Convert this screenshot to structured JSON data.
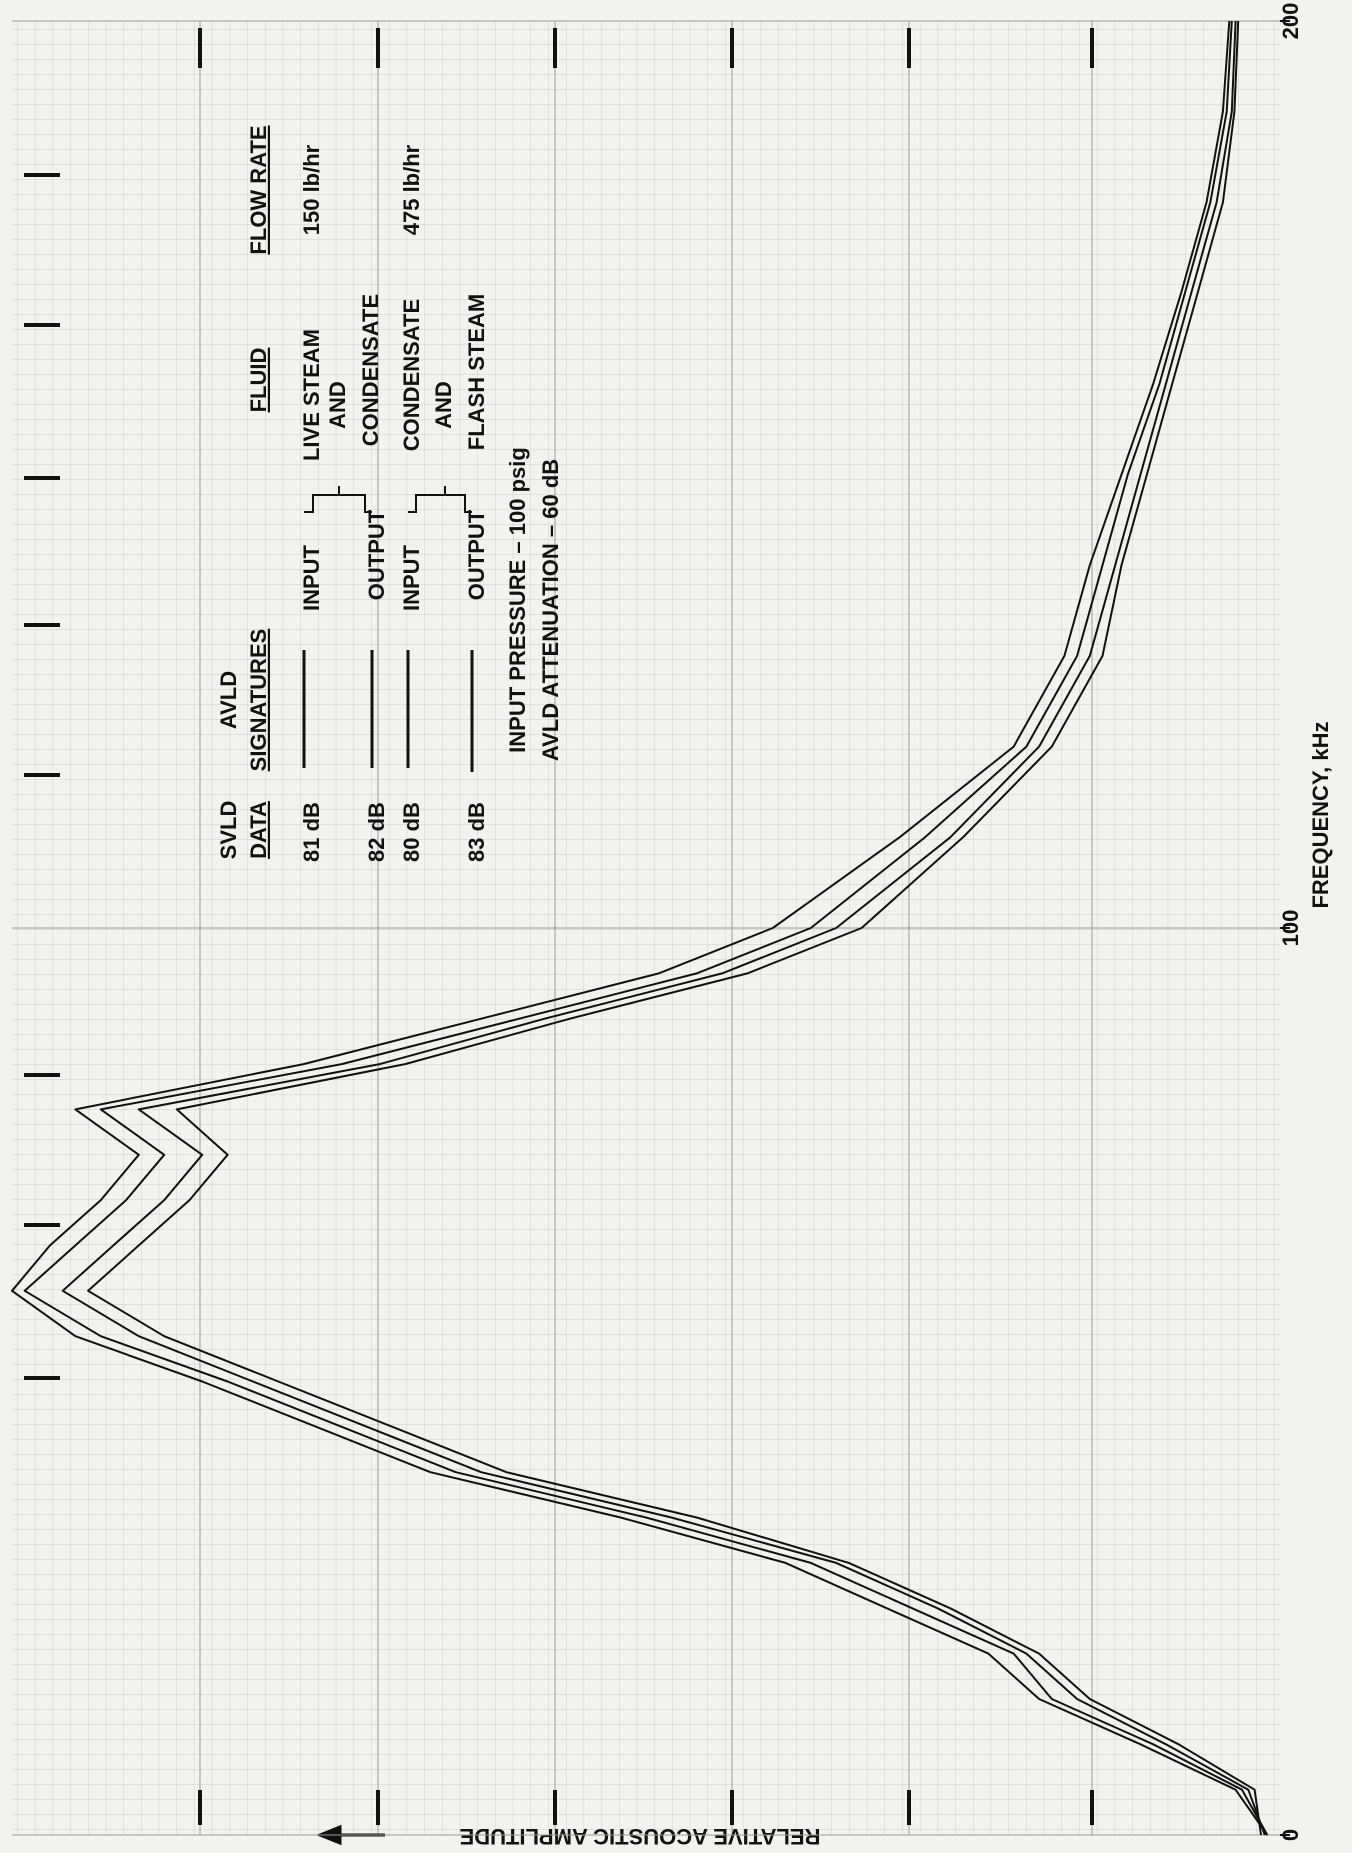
{
  "chart_data": {
    "type": "line",
    "xlabel": "FREQUENCY, kHz",
    "ylabel": "RELATIVE ACOUSTIC AMPLITUDE",
    "xlim": [
      0,
      200
    ],
    "xticks": [
      0,
      100,
      200
    ],
    "ylim": [
      0,
      10
    ],
    "grid": true,
    "x": [
      0,
      5,
      10,
      15,
      20,
      25,
      30,
      35,
      40,
      45,
      50,
      55,
      60,
      65,
      70,
      75,
      80,
      85,
      90,
      95,
      100,
      110,
      120,
      130,
      140,
      150,
      160,
      170,
      180,
      190,
      200
    ],
    "series": [
      {
        "color": "#111111",
        "values": [
          0.1,
          0.3,
          1.0,
          1.8,
          2.1,
          2.9,
          3.7,
          5.0,
          6.5,
          7.4,
          8.3,
          9.3,
          9.9,
          9.5,
          9.1,
          8.8,
          9.3,
          7.4,
          6.0,
          4.6,
          3.7,
          2.8,
          2.0,
          1.6,
          1.4,
          1.2,
          0.95,
          0.75,
          0.55,
          0.42,
          0.38
        ]
      },
      {
        "color": "#111111",
        "values": [
          0.15,
          0.2,
          0.8,
          1.5,
          1.9,
          2.6,
          3.4,
          4.6,
          6.1,
          7.0,
          7.9,
          8.8,
          9.4,
          9.0,
          8.6,
          8.3,
          8.7,
          6.9,
          5.6,
          4.2,
          3.3,
          2.5,
          1.8,
          1.4,
          1.25,
          1.05,
          0.85,
          0.65,
          0.45,
          0.36,
          0.33
        ]
      },
      {
        "color": "#111111",
        "values": [
          0.1,
          0.35,
          1.1,
          1.9,
          2.3,
          3.1,
          3.9,
          5.2,
          6.7,
          7.6,
          8.5,
          9.5,
          10.0,
          9.7,
          9.3,
          9.0,
          9.5,
          7.7,
          6.3,
          4.9,
          4.0,
          3.0,
          2.1,
          1.7,
          1.5,
          1.25,
          1.0,
          0.78,
          0.58,
          0.45,
          0.4
        ]
      },
      {
        "color": "#111111",
        "values": [
          0.12,
          0.25,
          0.9,
          1.6,
          2.0,
          2.7,
          3.5,
          4.8,
          6.3,
          7.2,
          8.1,
          9.0,
          9.6,
          9.2,
          8.8,
          8.5,
          9.0,
          7.1,
          5.8,
          4.4,
          3.5,
          2.6,
          1.9,
          1.5,
          1.3,
          1.1,
          0.9,
          0.7,
          0.5,
          0.38,
          0.35
        ]
      }
    ],
    "legend_table": {
      "headers": [
        [
          "SVLD",
          "DATA"
        ],
        [
          "AVLD",
          "SIGNATURES"
        ],
        [
          "FLUID"
        ],
        [
          "FLOW RATE"
        ]
      ],
      "svld": [
        "81 dB",
        "82 dB",
        "80 dB",
        "83 dB"
      ],
      "signatures": [
        "INPUT",
        "OUTPUT",
        "INPUT",
        "OUTPUT"
      ],
      "fluid": [
        [
          "LIVE STEAM",
          "AND",
          "CONDENSATE"
        ],
        [
          "CONDENSATE",
          "AND",
          "FLASH STEAM"
        ]
      ],
      "flow_rate": [
        "150 lb/hr",
        "475 lb/hr"
      ]
    },
    "notes": [
      "INPUT PRESSURE – 100 psig",
      "AVLD ATTENUATION – 60 dB"
    ]
  }
}
